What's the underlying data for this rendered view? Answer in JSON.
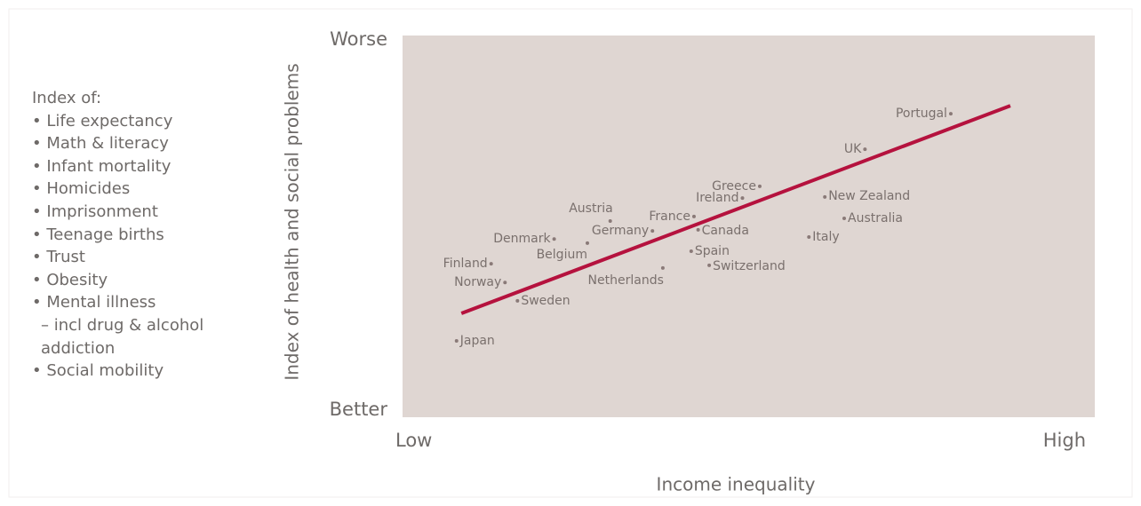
{
  "chart_data": {
    "type": "scatter",
    "y_label": "Index of health and social problems",
    "x_label": "Income inequality",
    "xticks": [
      {
        "value": 0,
        "label": "Low"
      },
      {
        "value": 100,
        "label": "High"
      }
    ],
    "yticks": [
      {
        "value": 0,
        "label": "Better"
      },
      {
        "value": 100,
        "label": "Worse"
      }
    ],
    "xlim": [
      0,
      100
    ],
    "ylim": [
      0,
      100
    ],
    "point_color": "#8a7a78",
    "background_color": "#dfd6d2",
    "index_title": "Index of:",
    "index_items": [
      "• Life expectancy",
      "• Math & literacy",
      "• Infant mortality",
      "• Homicides",
      "• Imprisonment",
      "• Teenage births",
      "• Trust",
      "• Obesity",
      "• Mental illness",
      "– incl drug & alcohol addiction",
      "• Social mobility"
    ],
    "labels": [
      "Portugal",
      "UK",
      "Greece",
      "Ireland",
      "New Zealand",
      "Australia",
      "Italy",
      "France",
      "Canada",
      "Spain",
      "Switzerland",
      "Netherlands",
      "Austria",
      "Germany",
      "Belgium",
      "Denmark",
      "Finland",
      "Norway",
      "Sweden",
      "Japan"
    ],
    "x": [
      79.2,
      66.8,
      51.6,
      49.1,
      61.0,
      63.8,
      58.7,
      42.1,
      42.7,
      41.7,
      44.3,
      37.6,
      30.0,
      36.1,
      26.7,
      21.9,
      12.8,
      14.8,
      16.6,
      7.8
    ],
    "y": [
      79.5,
      70.2,
      60.5,
      57.4,
      57.7,
      52.1,
      47.2,
      52.6,
      49.1,
      43.5,
      39.8,
      39.1,
      51.4,
      48.8,
      45.6,
      46.7,
      40.2,
      35.3,
      30.5,
      20.0
    ],
    "trend": {
      "color": "#b5123e",
      "x": [
        8.5,
        87.8
      ],
      "y": [
        27.2,
        81.6
      ]
    }
  }
}
